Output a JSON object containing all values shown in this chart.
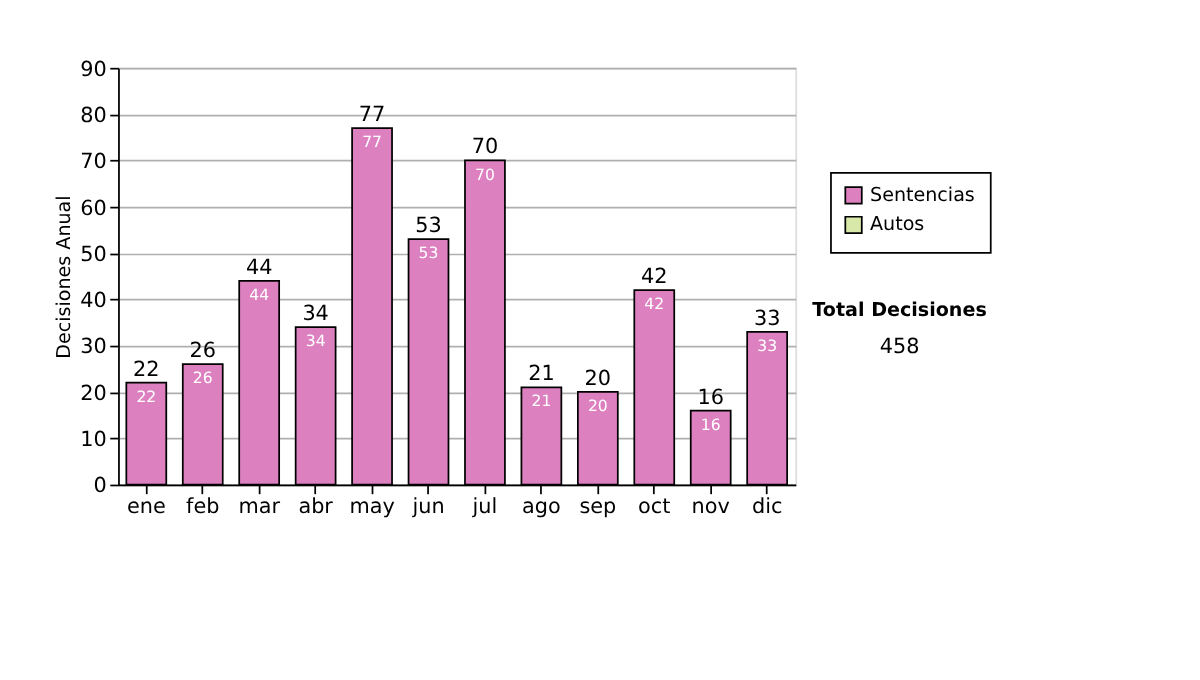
{
  "chart_data": {
    "type": "bar",
    "stacked": true,
    "ylabel": "Decisiones Anual",
    "categories": [
      "ene",
      "feb",
      "mar",
      "abr",
      "may",
      "jun",
      "jul",
      "ago",
      "sep",
      "oct",
      "nov",
      "dic"
    ],
    "series": [
      {
        "name": "Sentencias",
        "color": "#dd80c0",
        "values": [
          22,
          26,
          44,
          34,
          77,
          53,
          70,
          21,
          20,
          42,
          16,
          33
        ]
      },
      {
        "name": "Autos",
        "color": "#d8e8a8",
        "values": [
          null,
          null,
          null,
          null,
          null,
          null,
          null,
          null,
          null,
          null,
          null,
          null
        ]
      }
    ],
    "totals": [
      "22",
      "26",
      "44",
      "34",
      "77",
      "53",
      "70",
      "21",
      "20",
      "42",
      "16",
      "33"
    ],
    "data_labels": true,
    "ylim": [
      0,
      90
    ],
    "yticks": [
      0,
      10,
      20,
      30,
      40,
      50,
      60,
      70,
      80,
      90
    ],
    "grid": "y",
    "legend": "right",
    "annotations": [
      "Total Decisiones",
      "458"
    ]
  }
}
